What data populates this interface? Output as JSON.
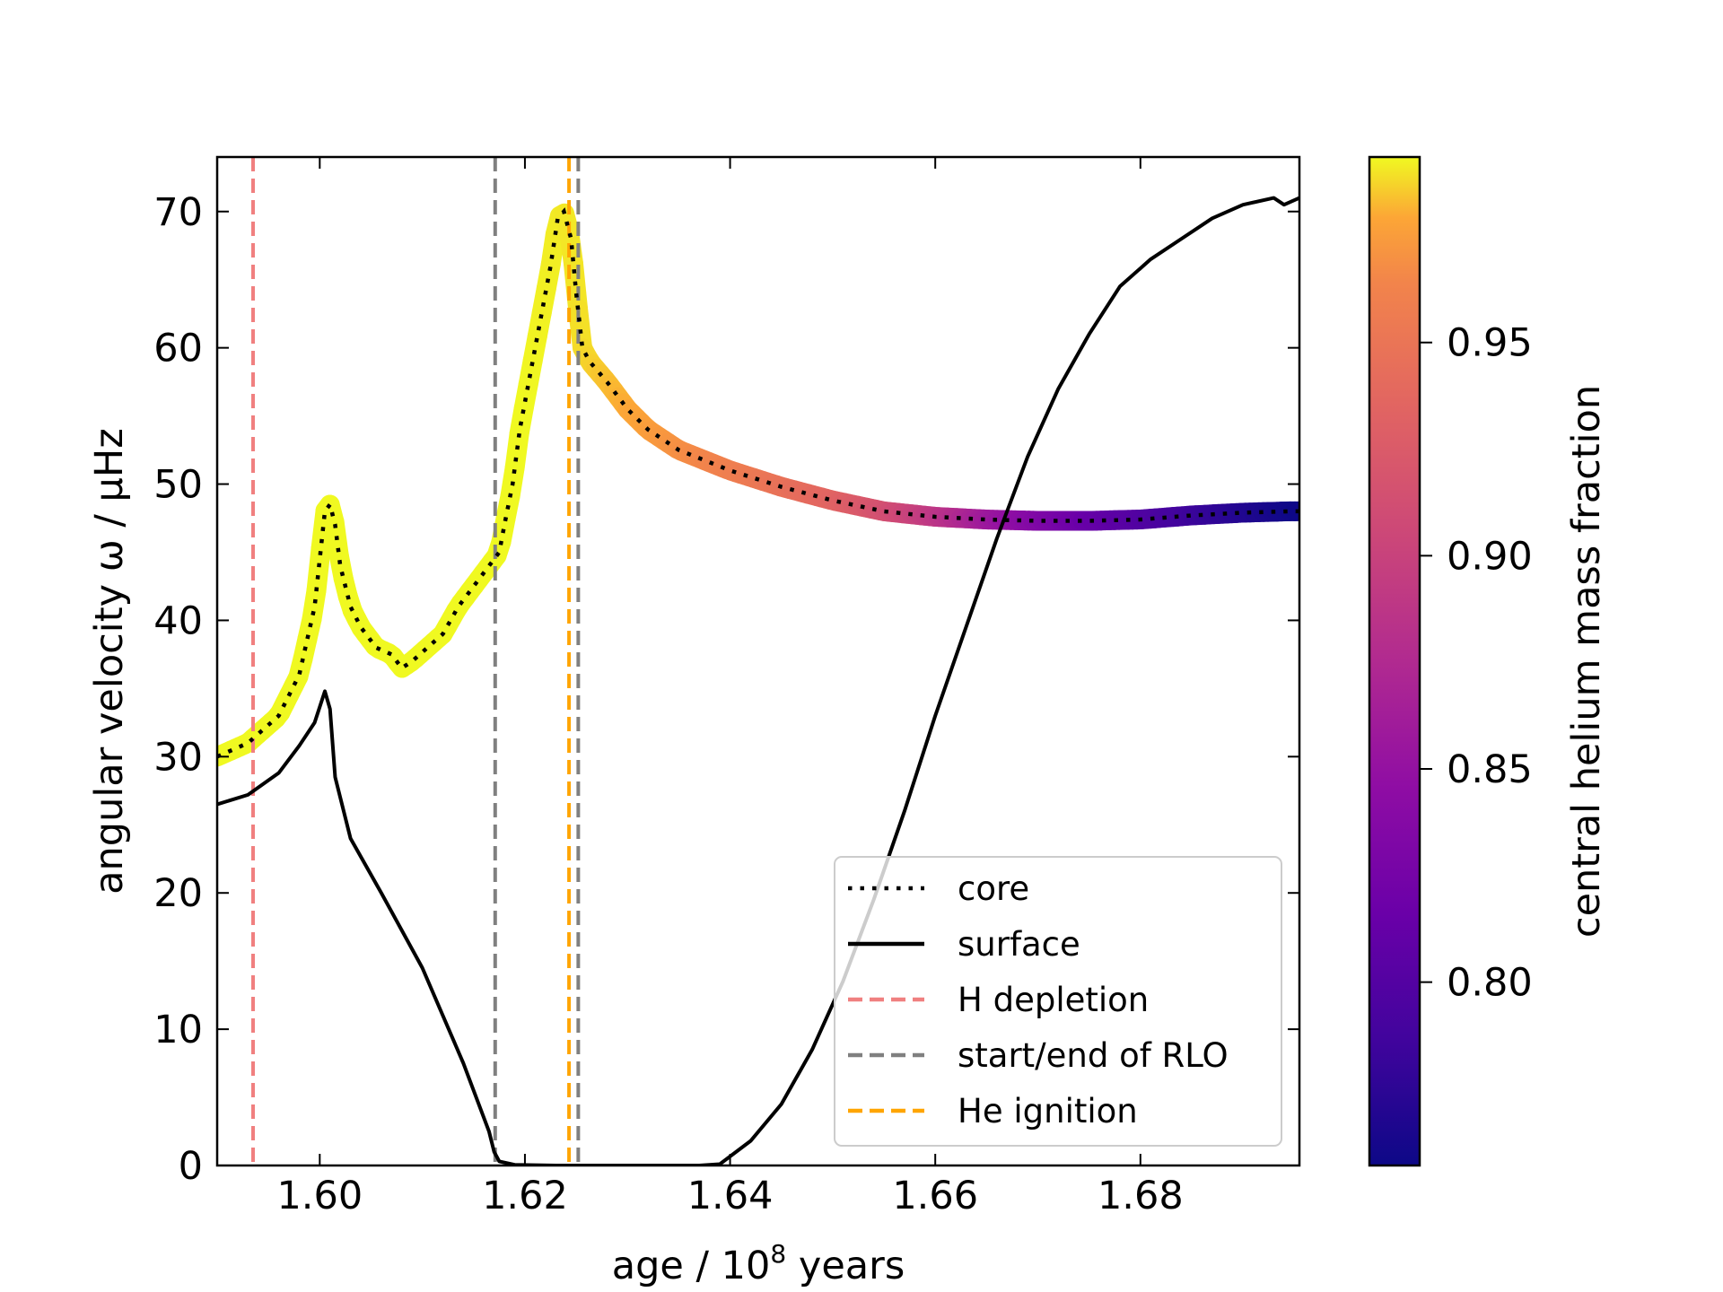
{
  "chart_data": {
    "type": "line",
    "xlabel": "age / 10",
    "xlabel_exponent": "8",
    "xlabel_suffix": "years",
    "ylabel": "angular velocity ω / μHz",
    "xlim": [
      1.59,
      1.6955
    ],
    "ylim": [
      0,
      74
    ],
    "xticks": [
      1.6,
      1.62,
      1.64,
      1.66,
      1.68
    ],
    "xtick_labels": [
      "1.60",
      "1.62",
      "1.64",
      "1.66",
      "1.68"
    ],
    "yticks": [
      0,
      10,
      20,
      30,
      40,
      50,
      60,
      70
    ],
    "ytick_labels": [
      "0",
      "10",
      "20",
      "30",
      "40",
      "50",
      "60",
      "70"
    ],
    "colorbar": {
      "label": "central helium mass fraction",
      "cmap": "plasma",
      "range": [
        0.757,
        0.9935
      ],
      "ticks": [
        0.8,
        0.85,
        0.9,
        0.95
      ],
      "tick_labels": [
        "0.80",
        "0.85",
        "0.90",
        "0.95"
      ]
    },
    "vlines": [
      {
        "name": "H depletion",
        "x": 1.5935,
        "color": "#f08080"
      },
      {
        "name": "start/end of RLO",
        "x": 1.6171,
        "color": "#808080"
      },
      {
        "name": "start/end of RLO",
        "x": 1.6252,
        "color": "#808080"
      },
      {
        "name": "He ignition",
        "x": 1.6243,
        "color": "#ffa500"
      }
    ],
    "legend": {
      "position": "lower-right",
      "entries": [
        {
          "label": "core",
          "style": "dotted",
          "color": "#000000"
        },
        {
          "label": "surface",
          "style": "solid",
          "color": "#000000"
        },
        {
          "label": "H depletion",
          "style": "dashed",
          "color": "#f08080"
        },
        {
          "label": "start/end of RLO",
          "style": "dashed",
          "color": "#808080"
        },
        {
          "label": "He ignition",
          "style": "dashed",
          "color": "#ffa500"
        }
      ]
    },
    "series": [
      {
        "name": "core",
        "style": "dotted",
        "x": [
          1.59,
          1.593,
          1.596,
          1.598,
          1.5995,
          1.6005,
          1.601,
          1.6015,
          1.602,
          1.603,
          1.604,
          1.6055,
          1.607,
          1.608,
          1.609,
          1.6105,
          1.612,
          1.6135,
          1.615,
          1.6165,
          1.6175,
          1.618,
          1.6188,
          1.6195,
          1.6205,
          1.6215,
          1.6225,
          1.6232,
          1.6238,
          1.6245,
          1.625,
          1.6256,
          1.6263,
          1.628,
          1.63,
          1.632,
          1.635,
          1.64,
          1.645,
          1.65,
          1.655,
          1.66,
          1.665,
          1.67,
          1.675,
          1.68,
          1.685,
          1.69,
          1.6945,
          1.6955
        ],
        "y": [
          30,
          31,
          33,
          36,
          41,
          48,
          48.5,
          47,
          44,
          41,
          39.5,
          38,
          37.5,
          36.5,
          37,
          38,
          39,
          41,
          42.5,
          44,
          45,
          47,
          50,
          54,
          58,
          62,
          66,
          69.5,
          70,
          68,
          64,
          60,
          59,
          57.5,
          55.5,
          54,
          52.5,
          51,
          49.8,
          48.8,
          48,
          47.6,
          47.4,
          47.3,
          47.3,
          47.4,
          47.7,
          47.9,
          48,
          48
        ]
      },
      {
        "name": "surface",
        "style": "solid",
        "x": [
          1.59,
          1.593,
          1.596,
          1.598,
          1.5995,
          1.6005,
          1.601,
          1.6015,
          1.603,
          1.606,
          1.61,
          1.614,
          1.6165,
          1.617,
          1.6175,
          1.619,
          1.623,
          1.63,
          1.637,
          1.639,
          1.642,
          1.645,
          1.648,
          1.651,
          1.654,
          1.657,
          1.66,
          1.663,
          1.666,
          1.669,
          1.672,
          1.675,
          1.678,
          1.681,
          1.684,
          1.687,
          1.69,
          1.693,
          1.694,
          1.6955
        ],
        "y": [
          26.5,
          27.2,
          28.8,
          30.8,
          32.5,
          34.8,
          33.5,
          28.5,
          24,
          20,
          14.5,
          7.5,
          2.5,
          1,
          0.3,
          0.05,
          0,
          0,
          0,
          0.1,
          1.8,
          4.5,
          8.5,
          13.5,
          19.5,
          26,
          33,
          39.5,
          46,
          52,
          57,
          61,
          64.5,
          66.5,
          68,
          69.5,
          70.5,
          71,
          70.5,
          71
        ]
      },
      {
        "name": "central helium mass fraction (colored)",
        "x": [
          1.59,
          1.6,
          1.61,
          1.62,
          1.625,
          1.63,
          1.64,
          1.65,
          1.655,
          1.66,
          1.665,
          1.67,
          1.675,
          1.68,
          1.685,
          1.69,
          1.6955
        ],
        "y": [
          0.9935,
          0.9935,
          0.9935,
          0.9935,
          0.99,
          0.98,
          0.96,
          0.935,
          0.915,
          0.89,
          0.86,
          0.835,
          0.815,
          0.8,
          0.785,
          0.77,
          0.757
        ]
      }
    ]
  }
}
